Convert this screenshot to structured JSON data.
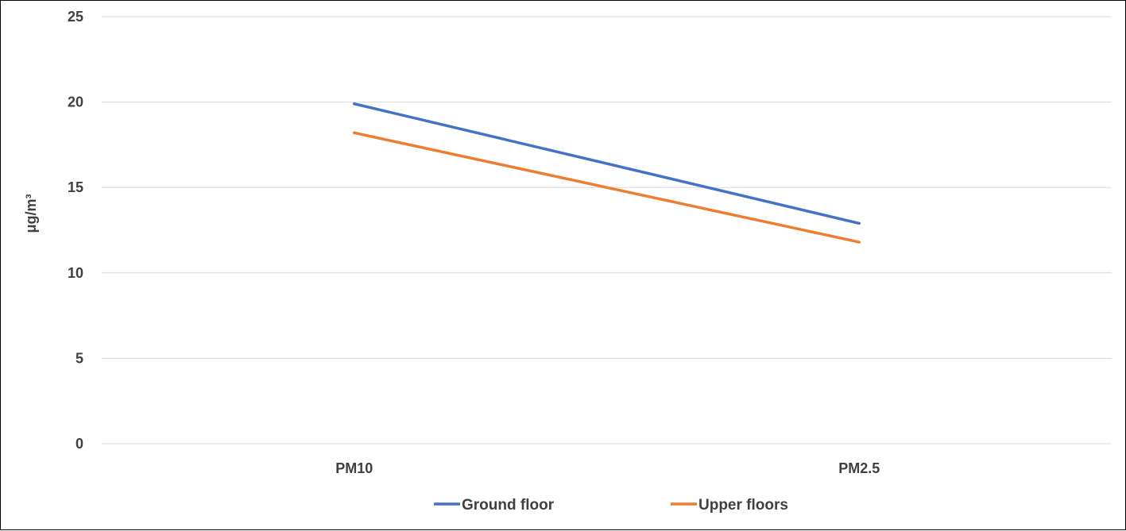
{
  "chart_data": {
    "type": "line",
    "title": "",
    "xlabel": "",
    "ylabel": "μg/m³",
    "categories": [
      "PM10",
      "PM2.5"
    ],
    "ylim": [
      0,
      25
    ],
    "yticks": [
      "0",
      "5",
      "10",
      "15",
      "20",
      "25"
    ],
    "grid": true,
    "legend_position": "bottom",
    "series": [
      {
        "name": "Ground floor",
        "values": [
          19.9,
          12.9
        ],
        "color": "#4472C4"
      },
      {
        "name": "Upper floors",
        "values": [
          18.2,
          11.8
        ],
        "color": "#ED7D31"
      }
    ]
  }
}
